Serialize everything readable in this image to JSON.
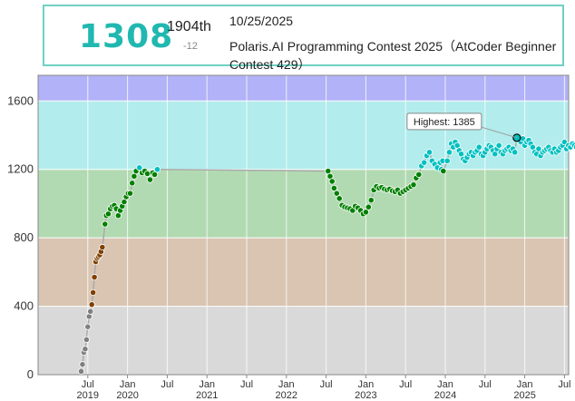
{
  "status": {
    "rating": "1308",
    "rank": "1904th",
    "diff": "-12",
    "date": "10/25/2025",
    "contest": "Polaris.AI Programming Contest 2025（AtCoder Beginner Contest 429）"
  },
  "tooltip": {
    "label": "Highest: 1385"
  },
  "chart_data": {
    "type": "scatter",
    "title": "",
    "xlabel": "",
    "ylabel": "",
    "ylim": [
      0,
      1750
    ],
    "grid": true,
    "y_ticks": [
      "0",
      "400",
      "800",
      "1200",
      "1600"
    ],
    "x_ticks": [
      {
        "label": "Jul",
        "sub": "2019"
      },
      {
        "label": "Jan",
        "sub": "2020"
      },
      {
        "label": "Jul",
        "sub": ""
      },
      {
        "label": "Jan",
        "sub": "2021"
      },
      {
        "label": "Jul",
        "sub": ""
      },
      {
        "label": "Jan",
        "sub": "2022"
      },
      {
        "label": "Jul",
        "sub": ""
      },
      {
        "label": "Jan",
        "sub": "2023"
      },
      {
        "label": "Jul",
        "sub": ""
      },
      {
        "label": "Jan",
        "sub": "2024"
      },
      {
        "label": "Jul",
        "sub": ""
      },
      {
        "label": "Jan",
        "sub": "2025"
      },
      {
        "label": "Jul",
        "sub": ""
      }
    ],
    "bands": [
      {
        "from": 0,
        "to": 400,
        "color": "#d9d9d9"
      },
      {
        "from": 400,
        "to": 800,
        "color": "#d9c5b2"
      },
      {
        "from": 800,
        "to": 1200,
        "color": "#b2dab2"
      },
      {
        "from": 1200,
        "to": 1600,
        "color": "#b2ecec"
      },
      {
        "from": 1600,
        "to": 1750,
        "color": "#b2b2f8"
      }
    ],
    "colors": {
      "gray": "#808080",
      "brown": "#804000",
      "green": "#008000",
      "cyan": "#00c0c0"
    },
    "highest": 1385,
    "x_unit": "months since Jan 2019",
    "points": [
      [
        5.0,
        20
      ],
      [
        5.2,
        60
      ],
      [
        5.4,
        130
      ],
      [
        5.6,
        150
      ],
      [
        5.8,
        205
      ],
      [
        6.0,
        280
      ],
      [
        6.2,
        340
      ],
      [
        6.4,
        370
      ],
      [
        6.6,
        410
      ],
      [
        6.8,
        480
      ],
      [
        7.0,
        570
      ],
      [
        7.2,
        660
      ],
      [
        7.4,
        680
      ],
      [
        7.6,
        690
      ],
      [
        7.8,
        700
      ],
      [
        8.0,
        720
      ],
      [
        8.2,
        745
      ],
      [
        8.6,
        880
      ],
      [
        8.8,
        930
      ],
      [
        9.1,
        940
      ],
      [
        9.4,
        970
      ],
      [
        9.7,
        985
      ],
      [
        10.0,
        990
      ],
      [
        10.3,
        970
      ],
      [
        10.6,
        930
      ],
      [
        10.9,
        960
      ],
      [
        11.2,
        985
      ],
      [
        11.5,
        1010
      ],
      [
        11.8,
        1040
      ],
      [
        12.1,
        1060
      ],
      [
        12.4,
        1060
      ],
      [
        12.7,
        1120
      ],
      [
        13.0,
        1160
      ],
      [
        13.3,
        1190
      ],
      [
        13.8,
        1210
      ],
      [
        14.2,
        1180
      ],
      [
        14.6,
        1190
      ],
      [
        15.0,
        1175
      ],
      [
        15.4,
        1140
      ],
      [
        15.8,
        1180
      ],
      [
        16.1,
        1170
      ],
      [
        16.5,
        1200
      ],
      [
        42.3,
        1190
      ],
      [
        42.6,
        1160
      ],
      [
        42.9,
        1130
      ],
      [
        43.2,
        1090
      ],
      [
        43.6,
        1060
      ],
      [
        44.0,
        1030
      ],
      [
        44.4,
        990
      ],
      [
        44.8,
        980
      ],
      [
        45.2,
        975
      ],
      [
        45.6,
        970
      ],
      [
        46.0,
        960
      ],
      [
        46.4,
        985
      ],
      [
        46.8,
        975
      ],
      [
        47.2,
        960
      ],
      [
        47.6,
        940
      ],
      [
        48.0,
        950
      ],
      [
        48.4,
        980
      ],
      [
        48.8,
        1020
      ],
      [
        49.2,
        1080
      ],
      [
        49.6,
        1100
      ],
      [
        50.0,
        1090
      ],
      [
        50.4,
        1095
      ],
      [
        50.8,
        1085
      ],
      [
        51.2,
        1080
      ],
      [
        51.6,
        1085
      ],
      [
        52.0,
        1075
      ],
      [
        52.4,
        1070
      ],
      [
        52.8,
        1080
      ],
      [
        53.2,
        1060
      ],
      [
        53.6,
        1070
      ],
      [
        54.0,
        1080
      ],
      [
        54.4,
        1090
      ],
      [
        54.8,
        1100
      ],
      [
        55.2,
        1110
      ],
      [
        55.6,
        1150
      ],
      [
        56.0,
        1170
      ],
      [
        56.4,
        1220
      ],
      [
        56.8,
        1240
      ],
      [
        57.2,
        1280
      ],
      [
        57.6,
        1300
      ],
      [
        58.0,
        1250
      ],
      [
        58.4,
        1230
      ],
      [
        58.8,
        1210
      ],
      [
        59.2,
        1240
      ],
      [
        59.6,
        1250
      ],
      [
        59.4,
        1200
      ],
      [
        59.7,
        1190
      ],
      [
        60.3,
        1250
      ],
      [
        60.6,
        1300
      ],
      [
        60.9,
        1350
      ],
      [
        61.2,
        1330
      ],
      [
        61.5,
        1360
      ],
      [
        61.8,
        1340
      ],
      [
        62.1,
        1310
      ],
      [
        62.4,
        1290
      ],
      [
        62.7,
        1260
      ],
      [
        63.0,
        1250
      ],
      [
        63.3,
        1270
      ],
      [
        63.6,
        1290
      ],
      [
        63.9,
        1300
      ],
      [
        64.2,
        1280
      ],
      [
        64.5,
        1300
      ],
      [
        64.8,
        1310
      ],
      [
        65.1,
        1330
      ],
      [
        65.4,
        1290
      ],
      [
        65.7,
        1280
      ],
      [
        66.0,
        1300
      ],
      [
        66.3,
        1320
      ],
      [
        66.6,
        1340
      ],
      [
        66.9,
        1330
      ],
      [
        67.2,
        1310
      ],
      [
        67.5,
        1290
      ],
      [
        67.8,
        1320
      ],
      [
        68.1,
        1340
      ],
      [
        68.4,
        1300
      ],
      [
        68.7,
        1290
      ],
      [
        69.0,
        1310
      ],
      [
        69.3,
        1320
      ],
      [
        69.6,
        1330
      ],
      [
        69.9,
        1310
      ],
      [
        70.2,
        1320
      ],
      [
        70.5,
        1300
      ],
      [
        70.8,
        1385
      ],
      [
        71.1,
        1370
      ],
      [
        71.4,
        1360
      ],
      [
        71.7,
        1380
      ],
      [
        72.0,
        1340
      ],
      [
        72.3,
        1360
      ],
      [
        72.6,
        1370
      ],
      [
        72.9,
        1350
      ],
      [
        73.2,
        1330
      ],
      [
        73.5,
        1300
      ],
      [
        73.8,
        1290
      ],
      [
        74.1,
        1320
      ],
      [
        74.4,
        1280
      ],
      [
        74.7,
        1300
      ],
      [
        75.0,
        1310
      ],
      [
        75.3,
        1320
      ],
      [
        75.6,
        1330
      ],
      [
        75.9,
        1310
      ],
      [
        76.2,
        1300
      ],
      [
        76.5,
        1320
      ],
      [
        76.8,
        1300
      ],
      [
        77.1,
        1310
      ],
      [
        77.4,
        1330
      ],
      [
        77.7,
        1340
      ],
      [
        78.0,
        1360
      ],
      [
        78.3,
        1320
      ],
      [
        78.6,
        1340
      ],
      [
        78.9,
        1330
      ],
      [
        79.2,
        1350
      ],
      [
        79.5,
        1340
      ],
      [
        79.8,
        1330
      ],
      [
        80.1,
        1320
      ],
      [
        80.4,
        1310
      ],
      [
        80.7,
        1340
      ],
      [
        81.0,
        1330
      ],
      [
        81.3,
        1320
      ],
      [
        81.6,
        1310
      ],
      [
        82.0,
        1310
      ],
      [
        82.4,
        1300
      ],
      [
        82.8,
        1320
      ],
      [
        83.6,
        1308
      ]
    ]
  }
}
